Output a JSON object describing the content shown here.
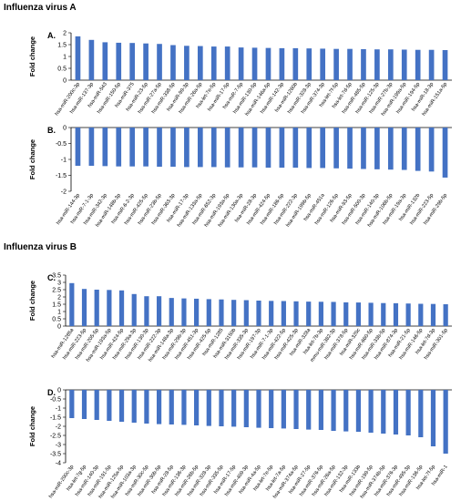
{
  "figure": {
    "section_a_title": "Influenza virus A",
    "section_b_title": "Influenza virus B"
  },
  "colors": {
    "bar": "#4472C4",
    "axis": "#000000"
  },
  "chart_data": [
    {
      "panel_label": "A.",
      "type": "bar",
      "ylabel": "Fold change",
      "ylim": [
        0,
        2
      ],
      "yticks": [
        "0",
        "0.5",
        "1",
        "1.5",
        "2"
      ],
      "categories": [
        "hsa-miR-200c-3p",
        "hsa-miR-137-3p",
        "hsa-miR-543",
        "hsa-miR-150-5p",
        "hsa-miR-375",
        "hsa-miR-23-5p",
        "hsa-miR-27a-5p",
        "hsa-miR-338-5p",
        "hsa-miR-99-3p",
        "hsa-miR-26a-5p",
        "hsa-let-7e-5p",
        "hsa-miR-17-5p",
        "hsa-miR-7-5p",
        "hsa-miR-130-5p",
        "hsa-miR-146a-5p",
        "hsa-miR-142-3p",
        "hsa-miR-1260b",
        "hsa-miR-328-3p",
        "hsa-miR-374-3p",
        "hsa-let-7f-5p",
        "hsa-let-7d-5p",
        "hsa-miR-485-5p",
        "hsa-miR-125-3p",
        "hsa-miR-27b-3p",
        "hsa-miR-199a-5p",
        "hsa-miR-194-5p",
        "hsa-miR-18-3p",
        "hsa-miR-151a-5p"
      ],
      "values": [
        1.85,
        1.7,
        1.6,
        1.58,
        1.57,
        1.55,
        1.53,
        1.48,
        1.45,
        1.44,
        1.42,
        1.42,
        1.38,
        1.37,
        1.36,
        1.35,
        1.35,
        1.34,
        1.33,
        1.32,
        1.32,
        1.31,
        1.3,
        1.3,
        1.29,
        1.28,
        1.28,
        1.27
      ]
    },
    {
      "panel_label": "B.",
      "type": "bar",
      "ylabel": "Fold change",
      "ylim": [
        -2,
        0
      ],
      "yticks": [
        "0",
        "-0.5",
        "-1",
        "-1.5",
        "-2"
      ],
      "categories": [
        "hsa-miR-144-3p",
        "hsa-miR-7-1-3p",
        "hsa-miR-342-3p",
        "hsa-miR-148b-3p",
        "hsa-miR-6-2-3p",
        "hsa-miR-425-5p",
        "hsa-miR-23b-5p",
        "hsa-miR-363-3p",
        "hsa-miR-17-3p",
        "hsa-miR-133a-5p",
        "hsa-miR-652-3p",
        "hsa-miR-193a-5p",
        "hsa-miR-130a-3p",
        "hsa-miR-28-3p",
        "hsa-miR-424-5p",
        "hsa-miR-186-5p",
        "hsa-miR-222-3p",
        "hsa-miR-199b-5p",
        "hsa-miR-451a",
        "hsa-miR-126-5p",
        "hsa-miR-93-5p",
        "hsa-miR-500-3p",
        "hsa-miR-140-3p",
        "hsa-miR-106b-5p",
        "hsa-miR-19a-3p",
        "hsa-miR-132b",
        "hsa-miR-223-5p",
        "hsa-miR-29b-5p"
      ],
      "values": [
        -1.2,
        -1.2,
        -1.21,
        -1.22,
        -1.22,
        -1.22,
        -1.23,
        -1.23,
        -1.24,
        -1.24,
        -1.24,
        -1.25,
        -1.25,
        -1.25,
        -1.26,
        -1.26,
        -1.26,
        -1.27,
        -1.27,
        -1.28,
        -1.29,
        -1.3,
        -1.31,
        -1.32,
        -1.33,
        -1.36,
        -1.38,
        -1.57
      ]
    },
    {
      "panel_label": "C.",
      "type": "bar",
      "ylabel": "Fold change",
      "ylim": [
        0,
        3.5
      ],
      "yticks": [
        "0",
        "0.5",
        "1",
        "1.5",
        "2",
        "2.5",
        "3",
        "3.5"
      ],
      "categories": [
        "hsa-miR-1285a",
        "hsa-miR-223-5p",
        "hsa-miR-205-5p",
        "hsa-miR-193a-5p",
        "hsa-miR-424-5p",
        "hsa-miR-29a-3p",
        "hsa-miR-130-3p",
        "hsa-miR-222-3p",
        "hsa-miR-148a-3p",
        "hsa-miR-29b-3p",
        "hsa-miR-451-3p",
        "hsa-miR-425-5p",
        "hsa-miR-1285",
        "hsa-miR-3150b",
        "hsa-miR-335-3p",
        "hsa-miR-197-3p",
        "hsa-miR-7-1-3p",
        "hsa-miR-422-5p",
        "hsa-miR-425-3p",
        "hsa-miR-328a",
        "hsa-let-7b-3p",
        "mmu-miR-382-3p",
        "hsa-miR-378-5p",
        "hsa-miR-320c",
        "hsa-miR-660-5p",
        "hsa-miR-33b-5p",
        "hsa-miR-874-3p",
        "hsa-miR-21-5p",
        "hsa-miR-146-5p",
        "hsa-let-7d-3p",
        "hsa-miR-301-5p"
      ],
      "values": [
        2.95,
        2.55,
        2.5,
        2.48,
        2.45,
        2.2,
        2.05,
        2.05,
        1.93,
        1.9,
        1.88,
        1.85,
        1.83,
        1.8,
        1.78,
        1.75,
        1.73,
        1.72,
        1.7,
        1.68,
        1.67,
        1.66,
        1.63,
        1.62,
        1.6,
        1.58,
        1.57,
        1.55,
        1.53,
        1.52,
        1.5
      ]
    },
    {
      "panel_label": "D.",
      "type": "bar",
      "ylabel": "Fold change",
      "ylim": [
        -4,
        0
      ],
      "yticks": [
        "0",
        "-0.5",
        "-1",
        "-1.5",
        "-2",
        "-2.5",
        "-3",
        "-3.5",
        "-4"
      ],
      "categories": [
        "hsa-miR-200c-3p",
        "hsa-let-7g-5p",
        "hsa-miR-140-3p",
        "hsa-miR-191-5p",
        "hsa-miR-125a-5p",
        "hsa-miR-103a-3p",
        "hsa-miR-30c-5p",
        "hsa-miR-30b-5p",
        "hsa-miR-28-5p",
        "hsa-miR-136-3p",
        "hsa-miR-26b-5p",
        "hsa-miR-328-3p",
        "hsa-miR-335-5p",
        "hsa-miR-17-5p",
        "hsa-miR-409-3p",
        "hsa-miR-4a-5p",
        "hsa-let-7e-5p",
        "hsa-let-7a-5p",
        "hsa-miR-374a-5p",
        "hsa-miR-27-5p",
        "hsa-miR-376-5p",
        "hsa-miR-26a-5p",
        "hsa-miR-132-3p",
        "hsa-miR-133b",
        "hsa-miR-199-5p",
        "hsa-miR-374b-5p",
        "hsa-miR-376-3p",
        "hsa-miR-495-3p",
        "hsa-miR-136-5p",
        "hsa-let-7f-5p",
        "hsa-miR-1"
      ],
      "values": [
        -1.55,
        -1.6,
        -1.65,
        -1.7,
        -1.75,
        -1.8,
        -1.85,
        -1.88,
        -1.9,
        -1.92,
        -1.95,
        -1.98,
        -2.0,
        -2.02,
        -2.05,
        -2.08,
        -2.1,
        -2.12,
        -2.15,
        -2.18,
        -2.2,
        -2.25,
        -2.28,
        -2.3,
        -2.35,
        -2.4,
        -2.45,
        -2.5,
        -2.6,
        -3.1,
        -3.5
      ]
    }
  ]
}
